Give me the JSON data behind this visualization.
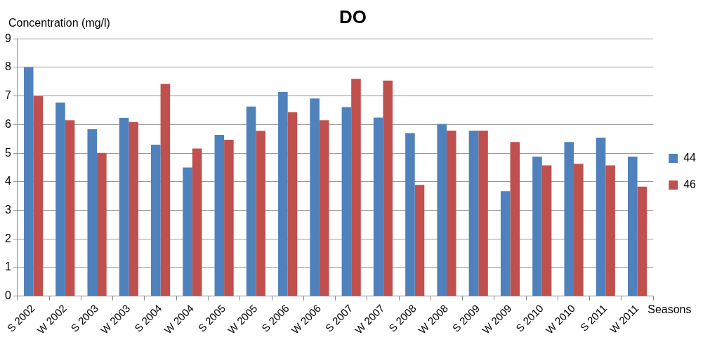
{
  "chart_data": {
    "type": "bar",
    "title": "DO",
    "ylabel": "Concentration (mg/l)",
    "xlabel": "Seasons",
    "categories": [
      "S 2002",
      "W 2002",
      "S 2003",
      "W 2003",
      "S 2004",
      "W 2004",
      "S 2005",
      "W 2005",
      "S 2006",
      "W 2006",
      "S 2007",
      "W 2007",
      "S 2008",
      "W 2008",
      "S 2009",
      "W 2009",
      "S 2010",
      "W 2010",
      "S 2011",
      "W 2011"
    ],
    "series": [
      {
        "name": "44",
        "color": "#4f81bd",
        "values": [
          8.0,
          6.77,
          5.84,
          6.23,
          5.3,
          4.5,
          5.64,
          6.63,
          7.14,
          6.91,
          6.61,
          6.24,
          5.7,
          6.02,
          5.79,
          3.67,
          4.88,
          5.39,
          5.54,
          4.88
        ]
      },
      {
        "name": "46",
        "color": "#c0504d",
        "values": [
          7.0,
          6.15,
          5.01,
          6.09,
          7.42,
          5.16,
          5.47,
          5.78,
          6.43,
          6.15,
          7.6,
          7.54,
          3.89,
          5.79,
          5.79,
          5.39,
          4.57,
          4.63,
          4.57,
          3.83
        ]
      }
    ],
    "ylim": [
      0,
      9
    ],
    "yticks": [
      0,
      1,
      2,
      3,
      4,
      5,
      6,
      7,
      8,
      9
    ],
    "grid": "y",
    "legend": "right"
  }
}
